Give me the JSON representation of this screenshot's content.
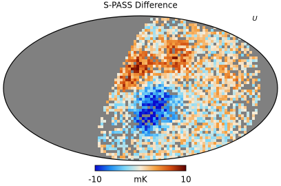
{
  "map": {
    "title": "S-PASS Difference",
    "stokes_label": "U",
    "projection": "mollweide",
    "colorbar": {
      "min": -10,
      "max": 10,
      "unit": "mK",
      "colors": [
        "#0a0ad0",
        "#1e8cf0",
        "#7fd8f8",
        "#f7ecd8",
        "#f5a040",
        "#d04a10",
        "#5a0000"
      ]
    }
  }
}
